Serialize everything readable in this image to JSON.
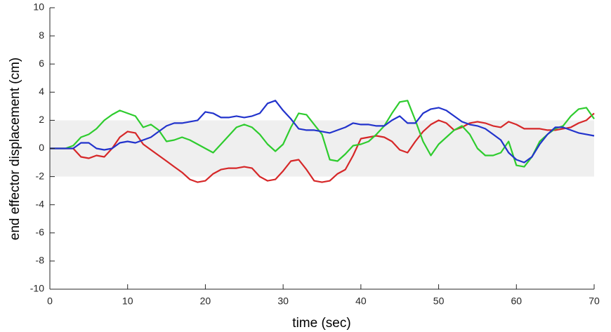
{
  "chart_data": {
    "type": "line",
    "xlabel": "time (sec)",
    "ylabel": "end effector displacement (cm)",
    "x": [
      0,
      1,
      2,
      3,
      4,
      5,
      6,
      7,
      8,
      9,
      10,
      11,
      12,
      13,
      14,
      15,
      16,
      17,
      18,
      19,
      20,
      21,
      22,
      23,
      24,
      25,
      26,
      27,
      28,
      29,
      30,
      31,
      32,
      33,
      34,
      35,
      36,
      37,
      38,
      39,
      40,
      41,
      42,
      43,
      44,
      45,
      46,
      47,
      48,
      49,
      50,
      51,
      52,
      53,
      54,
      55,
      56,
      57,
      58,
      59,
      60,
      61,
      62,
      63,
      64,
      65,
      66,
      67,
      68,
      69,
      70
    ],
    "series": [
      {
        "color": "#d62728",
        "values": [
          0,
          0,
          0,
          0,
          -0.6,
          -0.7,
          -0.5,
          -0.6,
          0,
          0.8,
          1.2,
          1.1,
          0.3,
          -0.1,
          -0.5,
          -0.9,
          -1.3,
          -1.7,
          -2.2,
          -2.4,
          -2.3,
          -1.8,
          -1.5,
          -1.4,
          -1.4,
          -1.3,
          -1.4,
          -2.0,
          -2.3,
          -2.2,
          -1.6,
          -0.9,
          -0.8,
          -1.5,
          -2.3,
          -2.4,
          -2.3,
          -1.8,
          -1.5,
          -0.5,
          0.7,
          0.8,
          0.9,
          0.8,
          0.5,
          -0.1,
          -0.3,
          0.5,
          1.2,
          1.7,
          2.0,
          1.8,
          1.3,
          1.5,
          1.8,
          1.9,
          1.8,
          1.6,
          1.5,
          1.9,
          1.7,
          1.4,
          1.4,
          1.4,
          1.3,
          1.3,
          1.4,
          1.5,
          1.8,
          2.0,
          2.5
        ]
      },
      {
        "color": "#2ecc2e",
        "values": [
          0,
          0,
          0,
          0.2,
          0.8,
          1.0,
          1.4,
          2.0,
          2.4,
          2.7,
          2.5,
          2.3,
          1.5,
          1.7,
          1.3,
          0.5,
          0.6,
          0.8,
          0.6,
          0.3,
          0,
          -0.3,
          0.3,
          0.9,
          1.5,
          1.7,
          1.5,
          1.0,
          0.3,
          -0.2,
          0.3,
          1.5,
          2.5,
          2.4,
          1.7,
          1.0,
          -0.8,
          -0.9,
          -0.4,
          0.2,
          0.3,
          0.5,
          1.0,
          1.6,
          2.5,
          3.3,
          3.4,
          2.0,
          0.5,
          -0.5,
          0.3,
          0.8,
          1.3,
          1.6,
          1.0,
          0,
          -0.5,
          -0.5,
          -0.3,
          0.5,
          -1.2,
          -1.3,
          -0.6,
          0.5,
          1.0,
          1.4,
          1.6,
          2.3,
          2.8,
          2.9,
          2.1
        ]
      },
      {
        "color": "#2233cc",
        "values": [
          0,
          0,
          0,
          0,
          0.4,
          0.4,
          0,
          -0.1,
          0,
          0.4,
          0.5,
          0.4,
          0.6,
          0.8,
          1.2,
          1.6,
          1.8,
          1.8,
          1.9,
          2.0,
          2.6,
          2.5,
          2.2,
          2.2,
          2.3,
          2.2,
          2.3,
          2.5,
          3.2,
          3.4,
          2.7,
          2.1,
          1.4,
          1.3,
          1.3,
          1.2,
          1.1,
          1.3,
          1.5,
          1.8,
          1.7,
          1.7,
          1.6,
          1.6,
          2.0,
          2.3,
          1.8,
          1.8,
          2.5,
          2.8,
          2.9,
          2.7,
          2.3,
          1.9,
          1.7,
          1.6,
          1.4,
          1.0,
          0.6,
          -0.3,
          -0.8,
          -1.0,
          -0.6,
          0.3,
          1.0,
          1.5,
          1.5,
          1.3,
          1.1,
          1.0,
          0.9
        ]
      }
    ],
    "shaded_band": [
      -2,
      2
    ],
    "band_color": "#efefef",
    "xlim": [
      0,
      70
    ],
    "xticks": [
      0,
      10,
      20,
      30,
      40,
      50,
      60,
      70
    ],
    "ylim": [
      -10,
      10
    ],
    "yticks": [
      -10,
      -8,
      -6,
      -4,
      -2,
      0,
      2,
      4,
      6,
      8,
      10
    ]
  }
}
